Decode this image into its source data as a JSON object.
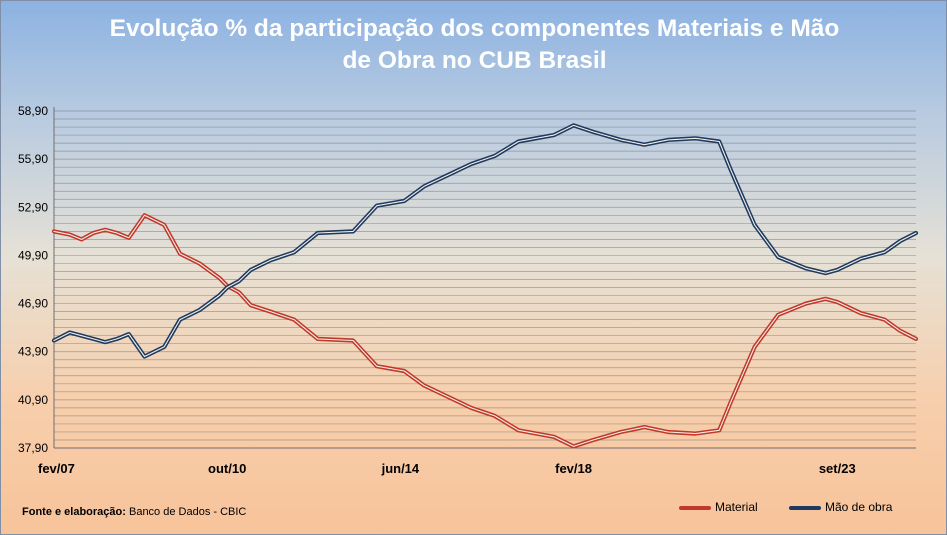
{
  "title_line1": "Evolução % da participação dos componentes Materiais e Mão",
  "title_line2": "de Obra no CUB Brasil",
  "source": {
    "label": "Fonte e elaboração:",
    "text": "Banco de Dados - CBIC"
  },
  "chart_data": {
    "type": "line",
    "title": "Evolução % da participação dos componentes Materiais e Mão de Obra no CUB Brasil",
    "x_start": "fev/07",
    "x_end": "mai/25",
    "x_frequency": "monthly",
    "x_ticks": [
      "fev/07",
      "out/10",
      "jun/14",
      "fev/18",
      "set/23"
    ],
    "y_ticks": [
      "37,90",
      "40,90",
      "43,90",
      "46,90",
      "49,90",
      "52,90",
      "55,90",
      "58,90"
    ],
    "ylim": [
      37.9,
      58.9
    ],
    "grid": "horizontal",
    "legend_position": "bottom-right",
    "colors": {
      "material": "#c0392b",
      "mao_de_obra": "#1f3a5f"
    },
    "series": [
      {
        "name": "Material",
        "points": [
          [
            "fev/07",
            51.4
          ],
          [
            "jun/07",
            51.2
          ],
          [
            "set/07",
            50.9
          ],
          [
            "dez/07",
            51.3
          ],
          [
            "mar/08",
            51.5
          ],
          [
            "jun/08",
            51.3
          ],
          [
            "set/08",
            51.0
          ],
          [
            "jan/09",
            52.4
          ],
          [
            "jun/09",
            51.8
          ],
          [
            "out/09",
            50.0
          ],
          [
            "mar/10",
            49.4
          ],
          [
            "ago/10",
            48.5
          ],
          [
            "out/10",
            48.0
          ],
          [
            "jan/11",
            47.6
          ],
          [
            "abr/11",
            46.8
          ],
          [
            "set/11",
            46.4
          ],
          [
            "mar/12",
            45.9
          ],
          [
            "set/12",
            44.7
          ],
          [
            "jun/13",
            44.6
          ],
          [
            "dez/13",
            43.0
          ],
          [
            "jul/14",
            42.7
          ],
          [
            "dez/14",
            41.8
          ],
          [
            "jun/15",
            41.1
          ],
          [
            "dez/15",
            40.4
          ],
          [
            "jun/16",
            39.9
          ],
          [
            "dez/16",
            39.0
          ],
          [
            "set/17",
            38.6
          ],
          [
            "fev/18",
            38.0
          ],
          [
            "jul/18",
            38.4
          ],
          [
            "fev/19",
            38.9
          ],
          [
            "ago/19",
            39.2
          ],
          [
            "fev/20",
            38.9
          ],
          [
            "set/20",
            38.8
          ],
          [
            "mar/21",
            39.0
          ],
          [
            "jun/21",
            40.8
          ],
          [
            "dez/21",
            44.2
          ],
          [
            "jun/22",
            46.2
          ],
          [
            "jan/23",
            46.9
          ],
          [
            "jun/23",
            47.2
          ],
          [
            "set/23",
            47.0
          ],
          [
            "mar/24",
            46.3
          ],
          [
            "set/24",
            45.9
          ],
          [
            "jan/25",
            45.2
          ],
          [
            "mai/25",
            44.7
          ]
        ]
      },
      {
        "name": "Mão de obra",
        "points": [
          [
            "fev/07",
            44.6
          ],
          [
            "jun/07",
            45.1
          ],
          [
            "set/07",
            44.9
          ],
          [
            "dez/07",
            44.7
          ],
          [
            "mar/08",
            44.5
          ],
          [
            "jun/08",
            44.7
          ],
          [
            "set/08",
            45.0
          ],
          [
            "jan/09",
            43.6
          ],
          [
            "jun/09",
            44.2
          ],
          [
            "out/09",
            45.9
          ],
          [
            "mar/10",
            46.5
          ],
          [
            "ago/10",
            47.4
          ],
          [
            "out/10",
            47.9
          ],
          [
            "jan/11",
            48.3
          ],
          [
            "abr/11",
            49.0
          ],
          [
            "set/11",
            49.6
          ],
          [
            "mar/12",
            50.1
          ],
          [
            "set/12",
            51.3
          ],
          [
            "jun/13",
            51.4
          ],
          [
            "dez/13",
            53.0
          ],
          [
            "jul/14",
            53.3
          ],
          [
            "dez/14",
            54.2
          ],
          [
            "jun/15",
            54.9
          ],
          [
            "dez/15",
            55.6
          ],
          [
            "jun/16",
            56.1
          ],
          [
            "dez/16",
            57.0
          ],
          [
            "set/17",
            57.4
          ],
          [
            "fev/18",
            58.0
          ],
          [
            "jul/18",
            57.6
          ],
          [
            "fev/19",
            57.1
          ],
          [
            "ago/19",
            56.8
          ],
          [
            "fev/20",
            57.1
          ],
          [
            "set/20",
            57.2
          ],
          [
            "mar/21",
            57.0
          ],
          [
            "jun/21",
            55.2
          ],
          [
            "dez/21",
            51.8
          ],
          [
            "jun/22",
            49.8
          ],
          [
            "jan/23",
            49.1
          ],
          [
            "jun/23",
            48.8
          ],
          [
            "set/23",
            49.0
          ],
          [
            "mar/24",
            49.7
          ],
          [
            "set/24",
            50.1
          ],
          [
            "jan/25",
            50.8
          ],
          [
            "mai/25",
            51.3
          ]
        ]
      }
    ]
  }
}
